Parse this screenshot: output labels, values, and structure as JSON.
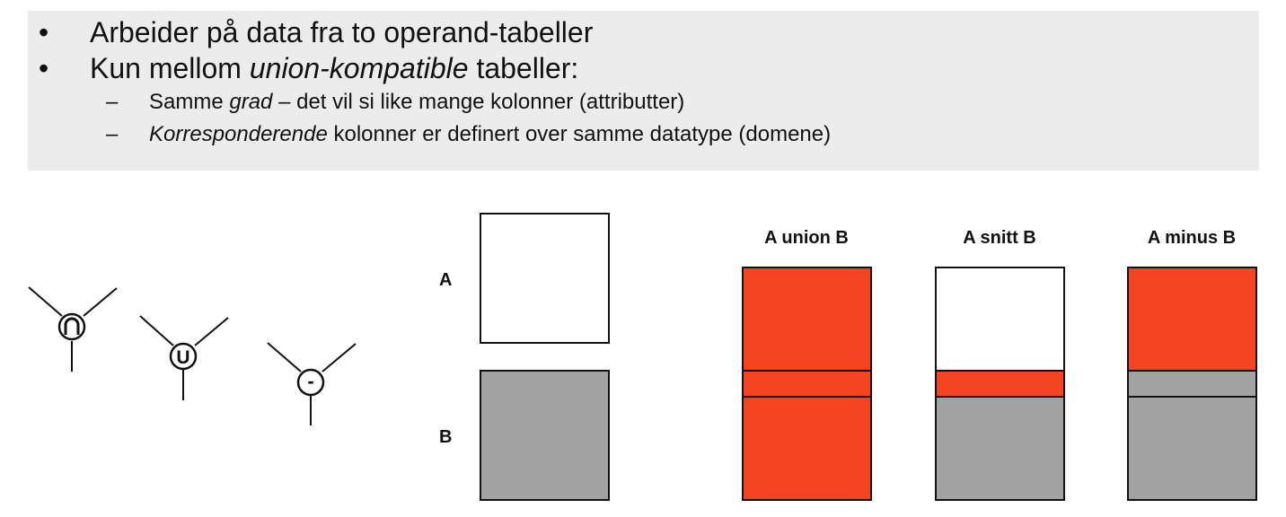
{
  "bullets": {
    "l1": {
      "marker": "•",
      "text": "Arbeider på data fra to operand-tabeller"
    },
    "l2": {
      "marker": "•",
      "pre": "Kun mellom ",
      "em": "union-kompatible",
      "post": " tabeller:"
    },
    "s1": {
      "marker": "–",
      "pre": "Samme ",
      "em": "grad",
      "post": " – det vil si like mange kolonner (attributter)"
    },
    "s2": {
      "marker": "–",
      "em": "Korresponderende",
      "post": " kolonner er definert over samme datatype (domene)"
    }
  },
  "operators": {
    "intersect": "∩",
    "union": "U",
    "minus": "-"
  },
  "operands": {
    "a": "A",
    "b": "B"
  },
  "results": {
    "union": "A union B",
    "snitt": "A snitt B",
    "minus": "A minus B"
  },
  "colors": {
    "red": "#f44421",
    "gray": "#a2a2a2",
    "panel": "#ececec"
  }
}
